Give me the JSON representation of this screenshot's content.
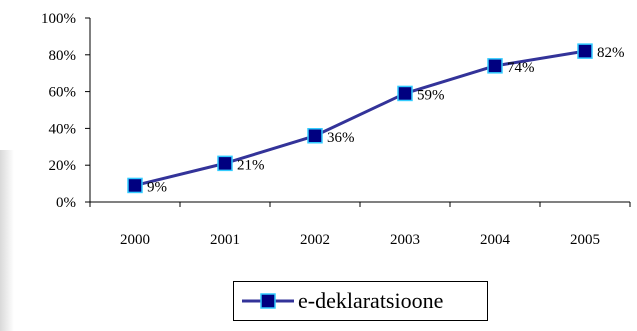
{
  "chart_data": {
    "type": "line",
    "categories": [
      "2000",
      "2001",
      "2002",
      "2003",
      "2004",
      "2005"
    ],
    "series": [
      {
        "name": "e-deklaratsioone",
        "values": [
          9,
          21,
          36,
          59,
          74,
          82
        ],
        "labels": [
          "9%",
          "21%",
          "36%",
          "59%",
          "74%",
          "82%"
        ]
      }
    ],
    "y_ticks": [
      "0%",
      "20%",
      "40%",
      "60%",
      "80%",
      "100%"
    ],
    "ylim": [
      0,
      100
    ],
    "title": "",
    "xlabel": "",
    "ylabel": "",
    "grid": false,
    "legend_position": "bottom",
    "line_color": "#333399",
    "marker_fill": "#000080",
    "marker_border": "#33ccff"
  }
}
